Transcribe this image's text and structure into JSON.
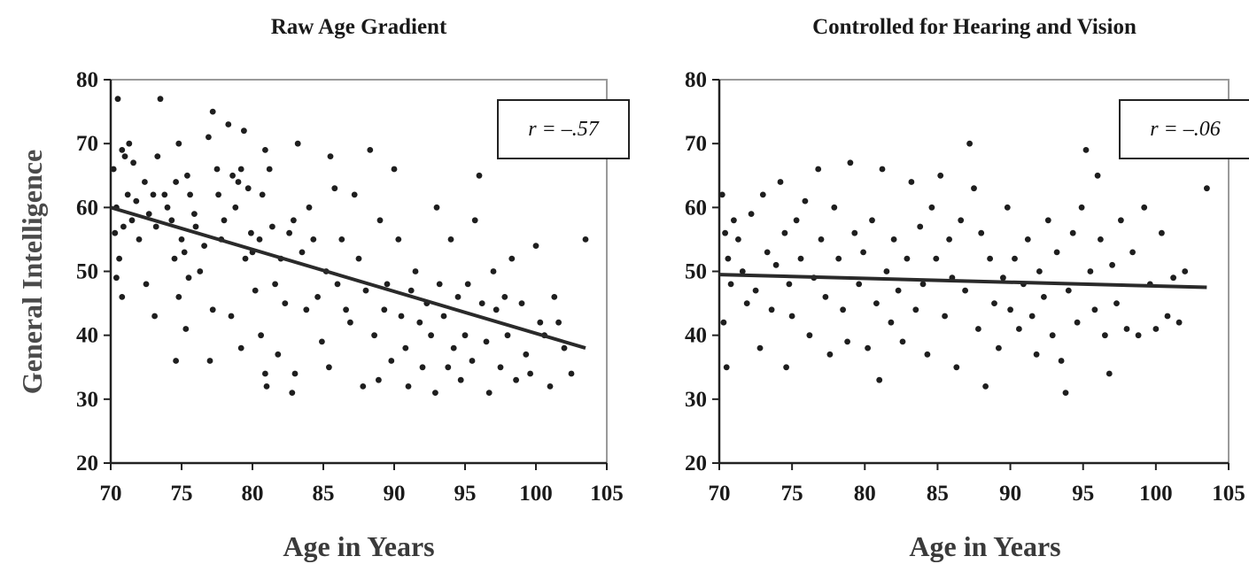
{
  "chart_data": [
    {
      "type": "scatter",
      "title": "Raw Age Gradient",
      "xlabel": "Age in Years",
      "ylabel": "General Intelligence",
      "xlim": [
        70,
        105
      ],
      "ylim": [
        20,
        80
      ],
      "xticks": [
        70,
        75,
        80,
        85,
        90,
        95,
        100,
        105
      ],
      "yticks": [
        20,
        30,
        40,
        50,
        60,
        70,
        80
      ],
      "annotation": "r = –.57",
      "fit_line": {
        "x": [
          70,
          103.5
        ],
        "y": [
          60,
          38
        ]
      },
      "grid": false,
      "points": [
        [
          70.2,
          66
        ],
        [
          70.5,
          77
        ],
        [
          70.8,
          69
        ],
        [
          71.0,
          68
        ],
        [
          71.3,
          70
        ],
        [
          71.6,
          67
        ],
        [
          70.4,
          60
        ],
        [
          70.9,
          57
        ],
        [
          71.2,
          62
        ],
        [
          71.8,
          61
        ],
        [
          70.3,
          56
        ],
        [
          70.6,
          52
        ],
        [
          70.4,
          49
        ],
        [
          70.8,
          46
        ],
        [
          71.5,
          58
        ],
        [
          72.0,
          55
        ],
        [
          72.4,
          64
        ],
        [
          72.7,
          59
        ],
        [
          73.0,
          62
        ],
        [
          73.3,
          68
        ],
        [
          73.5,
          77
        ],
        [
          73.8,
          62
        ],
        [
          73.2,
          57
        ],
        [
          73.1,
          43
        ],
        [
          72.5,
          48
        ],
        [
          74.0,
          60
        ],
        [
          74.3,
          58
        ],
        [
          74.6,
          64
        ],
        [
          74.8,
          70
        ],
        [
          75.0,
          55
        ],
        [
          75.2,
          53
        ],
        [
          75.4,
          65
        ],
        [
          75.6,
          62
        ],
        [
          75.9,
          59
        ],
        [
          74.5,
          52
        ],
        [
          74.8,
          46
        ],
        [
          74.6,
          36
        ],
        [
          75.3,
          41
        ],
        [
          75.5,
          49
        ],
        [
          76.0,
          57
        ],
        [
          76.3,
          50
        ],
        [
          76.6,
          54
        ],
        [
          76.9,
          71
        ],
        [
          77.2,
          75
        ],
        [
          77.5,
          66
        ],
        [
          77.6,
          62
        ],
        [
          77.8,
          55
        ],
        [
          77.2,
          44
        ],
        [
          77.0,
          36
        ],
        [
          78.0,
          58
        ],
        [
          78.3,
          73
        ],
        [
          78.6,
          65
        ],
        [
          78.8,
          60
        ],
        [
          79.0,
          64
        ],
        [
          79.2,
          66
        ],
        [
          79.4,
          72
        ],
        [
          79.7,
          63
        ],
        [
          79.9,
          56
        ],
        [
          79.5,
          52
        ],
        [
          78.5,
          43
        ],
        [
          79.2,
          38
        ],
        [
          80.0,
          53
        ],
        [
          80.2,
          47
        ],
        [
          80.5,
          55
        ],
        [
          80.7,
          62
        ],
        [
          80.9,
          69
        ],
        [
          81.2,
          66
        ],
        [
          80.6,
          40
        ],
        [
          80.9,
          34
        ],
        [
          81.0,
          32
        ],
        [
          81.4,
          57
        ],
        [
          81.6,
          48
        ],
        [
          81.8,
          37
        ],
        [
          82.0,
          52
        ],
        [
          82.3,
          45
        ],
        [
          82.6,
          56
        ],
        [
          82.9,
          58
        ],
        [
          83.2,
          70
        ],
        [
          83.0,
          34
        ],
        [
          82.8,
          31
        ],
        [
          83.5,
          53
        ],
        [
          83.8,
          44
        ],
        [
          84.0,
          60
        ],
        [
          84.3,
          55
        ],
        [
          84.6,
          46
        ],
        [
          84.9,
          39
        ],
        [
          85.2,
          50
        ],
        [
          85.5,
          68
        ],
        [
          85.8,
          63
        ],
        [
          85.4,
          35
        ],
        [
          86.0,
          48
        ],
        [
          86.3,
          55
        ],
        [
          86.6,
          44
        ],
        [
          86.9,
          42
        ],
        [
          87.2,
          62
        ],
        [
          87.5,
          52
        ],
        [
          87.8,
          32
        ],
        [
          88.0,
          47
        ],
        [
          88.3,
          69
        ],
        [
          88.6,
          40
        ],
        [
          88.9,
          33
        ],
        [
          89.0,
          58
        ],
        [
          89.3,
          44
        ],
        [
          89.5,
          48
        ],
        [
          89.8,
          36
        ],
        [
          90.0,
          66
        ],
        [
          90.3,
          55
        ],
        [
          90.5,
          43
        ],
        [
          90.8,
          38
        ],
        [
          91.0,
          32
        ],
        [
          91.2,
          47
        ],
        [
          91.5,
          50
        ],
        [
          91.8,
          42
        ],
        [
          92.0,
          35
        ],
        [
          92.3,
          45
        ],
        [
          92.6,
          40
        ],
        [
          92.9,
          31
        ],
        [
          93.0,
          60
        ],
        [
          93.2,
          48
        ],
        [
          93.5,
          43
        ],
        [
          93.8,
          35
        ],
        [
          94.0,
          55
        ],
        [
          94.2,
          38
        ],
        [
          94.5,
          46
        ],
        [
          94.7,
          33
        ],
        [
          95.0,
          40
        ],
        [
          95.2,
          48
        ],
        [
          95.5,
          36
        ],
        [
          95.7,
          58
        ],
        [
          96.0,
          65
        ],
        [
          96.2,
          45
        ],
        [
          96.5,
          39
        ],
        [
          96.7,
          31
        ],
        [
          97.0,
          50
        ],
        [
          97.2,
          44
        ],
        [
          97.5,
          35
        ],
        [
          97.8,
          46
        ],
        [
          98.0,
          40
        ],
        [
          98.3,
          52
        ],
        [
          98.6,
          33
        ],
        [
          99.0,
          45
        ],
        [
          99.3,
          37
        ],
        [
          99.6,
          34
        ],
        [
          100.0,
          54
        ],
        [
          100.3,
          42
        ],
        [
          100.6,
          40
        ],
        [
          101.0,
          32
        ],
        [
          101.3,
          46
        ],
        [
          101.6,
          42
        ],
        [
          102.0,
          38
        ],
        [
          102.5,
          34
        ],
        [
          103.5,
          55
        ]
      ]
    },
    {
      "type": "scatter",
      "title": "Controlled for Hearing and Vision",
      "xlabel": "Age in Years",
      "ylabel": "",
      "xlim": [
        70,
        105
      ],
      "ylim": [
        20,
        80
      ],
      "xticks": [
        70,
        75,
        80,
        85,
        90,
        95,
        100,
        105
      ],
      "yticks": [
        20,
        30,
        40,
        50,
        60,
        70,
        80
      ],
      "annotation": "r = –.06",
      "fit_line": {
        "x": [
          70,
          103.5
        ],
        "y": [
          49.5,
          47.5
        ]
      },
      "grid": false,
      "points": [
        [
          70.2,
          62
        ],
        [
          70.4,
          56
        ],
        [
          70.6,
          52
        ],
        [
          70.8,
          48
        ],
        [
          70.3,
          42
        ],
        [
          70.5,
          35
        ],
        [
          71.0,
          58
        ],
        [
          71.3,
          55
        ],
        [
          71.6,
          50
        ],
        [
          71.9,
          45
        ],
        [
          72.2,
          59
        ],
        [
          72.5,
          47
        ],
        [
          72.8,
          38
        ],
        [
          73.0,
          62
        ],
        [
          73.3,
          53
        ],
        [
          73.6,
          44
        ],
        [
          73.9,
          51
        ],
        [
          74.2,
          64
        ],
        [
          74.5,
          56
        ],
        [
          74.8,
          48
        ],
        [
          74.6,
          35
        ],
        [
          75.0,
          43
        ],
        [
          75.3,
          58
        ],
        [
          75.6,
          52
        ],
        [
          75.9,
          61
        ],
        [
          76.2,
          40
        ],
        [
          76.5,
          49
        ],
        [
          76.8,
          66
        ],
        [
          77.0,
          55
        ],
        [
          77.3,
          46
        ],
        [
          77.6,
          37
        ],
        [
          77.9,
          60
        ],
        [
          78.2,
          52
        ],
        [
          78.5,
          44
        ],
        [
          78.8,
          39
        ],
        [
          79.0,
          67
        ],
        [
          79.3,
          56
        ],
        [
          79.6,
          48
        ],
        [
          79.9,
          53
        ],
        [
          80.2,
          38
        ],
        [
          80.5,
          58
        ],
        [
          80.8,
          45
        ],
        [
          81.0,
          33
        ],
        [
          81.2,
          66
        ],
        [
          81.5,
          50
        ],
        [
          81.8,
          42
        ],
        [
          82.0,
          55
        ],
        [
          82.3,
          47
        ],
        [
          82.6,
          39
        ],
        [
          82.9,
          52
        ],
        [
          83.2,
          64
        ],
        [
          83.5,
          44
        ],
        [
          83.8,
          57
        ],
        [
          84.0,
          48
        ],
        [
          84.3,
          37
        ],
        [
          84.6,
          60
        ],
        [
          84.9,
          52
        ],
        [
          85.2,
          65
        ],
        [
          85.5,
          43
        ],
        [
          85.8,
          55
        ],
        [
          86.0,
          49
        ],
        [
          86.3,
          35
        ],
        [
          86.6,
          58
        ],
        [
          86.9,
          47
        ],
        [
          87.2,
          70
        ],
        [
          87.5,
          63
        ],
        [
          87.8,
          41
        ],
        [
          88.0,
          56
        ],
        [
          88.3,
          32
        ],
        [
          88.6,
          52
        ],
        [
          88.9,
          45
        ],
        [
          89.2,
          38
        ],
        [
          89.5,
          49
        ],
        [
          89.8,
          60
        ],
        [
          90.0,
          44
        ],
        [
          90.3,
          52
        ],
        [
          90.6,
          41
        ],
        [
          90.9,
          48
        ],
        [
          91.2,
          55
        ],
        [
          91.5,
          43
        ],
        [
          91.8,
          37
        ],
        [
          92.0,
          50
        ],
        [
          92.3,
          46
        ],
        [
          92.6,
          58
        ],
        [
          92.9,
          40
        ],
        [
          93.2,
          53
        ],
        [
          93.5,
          36
        ],
        [
          93.8,
          31
        ],
        [
          94.0,
          47
        ],
        [
          94.3,
          56
        ],
        [
          94.6,
          42
        ],
        [
          94.9,
          60
        ],
        [
          95.2,
          69
        ],
        [
          95.5,
          50
        ],
        [
          95.8,
          44
        ],
        [
          96.0,
          65
        ],
        [
          96.2,
          55
        ],
        [
          96.5,
          40
        ],
        [
          96.8,
          34
        ],
        [
          97.0,
          51
        ],
        [
          97.3,
          45
        ],
        [
          97.6,
          58
        ],
        [
          98.0,
          41
        ],
        [
          98.4,
          53
        ],
        [
          98.8,
          40
        ],
        [
          99.2,
          60
        ],
        [
          99.6,
          48
        ],
        [
          100.0,
          41
        ],
        [
          100.4,
          56
        ],
        [
          100.8,
          43
        ],
        [
          101.2,
          49
        ],
        [
          101.6,
          42
        ],
        [
          102.0,
          50
        ],
        [
          103.5,
          63
        ]
      ]
    }
  ]
}
